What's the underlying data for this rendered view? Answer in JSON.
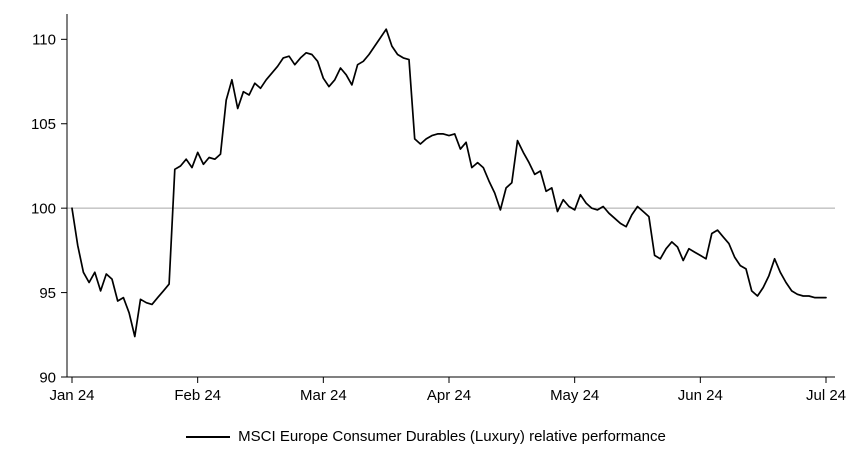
{
  "chart_data": {
    "type": "line",
    "title": "",
    "xlabel": "",
    "ylabel": "",
    "legend": "MSCI Europe Consumer Durables (Luxury) relative performance",
    "legend_position": "bottom-center",
    "grid": false,
    "x_tick_labels": [
      "Jan 24",
      "Feb 24",
      "Mar 24",
      "Apr 24",
      "May 24",
      "Jun 24",
      "Jul 24"
    ],
    "y_ticks": [
      90,
      95,
      100,
      105,
      110
    ],
    "ylim": [
      90,
      111.5
    ],
    "reference_line_y": 100,
    "colors": {
      "line": "#000000",
      "reference": "#a6a6a6",
      "axis": "#000000",
      "text": "#000000",
      "background": "#ffffff"
    },
    "series": [
      {
        "name": "MSCI Europe Consumer Durables (Luxury) relative performance",
        "color": "#000000",
        "values": [
          100.0,
          97.8,
          96.2,
          95.6,
          96.2,
          95.1,
          96.1,
          95.8,
          94.5,
          94.7,
          93.8,
          92.4,
          94.6,
          94.4,
          94.3,
          94.7,
          95.1,
          95.5,
          102.3,
          102.5,
          102.9,
          102.4,
          103.3,
          102.6,
          103.0,
          102.9,
          103.2,
          106.4,
          107.6,
          105.9,
          106.9,
          106.7,
          107.4,
          107.1,
          107.6,
          108.0,
          108.4,
          108.9,
          109.0,
          108.5,
          108.9,
          109.2,
          109.1,
          108.7,
          107.7,
          107.2,
          107.6,
          108.3,
          107.9,
          107.3,
          108.5,
          108.7,
          109.1,
          109.6,
          110.1,
          110.6,
          109.6,
          109.1,
          108.9,
          108.8,
          104.1,
          103.8,
          104.1,
          104.3,
          104.4,
          104.4,
          104.3,
          104.4,
          103.5,
          103.9,
          102.4,
          102.7,
          102.4,
          101.6,
          100.9,
          99.9,
          101.2,
          101.5,
          104.0,
          103.3,
          102.7,
          102.0,
          102.2,
          101.0,
          101.2,
          99.8,
          100.5,
          100.1,
          99.9,
          100.8,
          100.3,
          100.0,
          99.9,
          100.1,
          99.7,
          99.4,
          99.1,
          98.9,
          99.6,
          100.1,
          99.8,
          99.5,
          97.2,
          97.0,
          97.6,
          98.0,
          97.7,
          96.9,
          97.6,
          97.4,
          97.2,
          97.0,
          98.5,
          98.7,
          98.3,
          97.9,
          97.1,
          96.6,
          96.4,
          95.1,
          94.8,
          95.3,
          96.0,
          97.0,
          96.2,
          95.6,
          95.1,
          94.9,
          94.8,
          94.8,
          94.7,
          94.7,
          94.7
        ]
      }
    ]
  }
}
